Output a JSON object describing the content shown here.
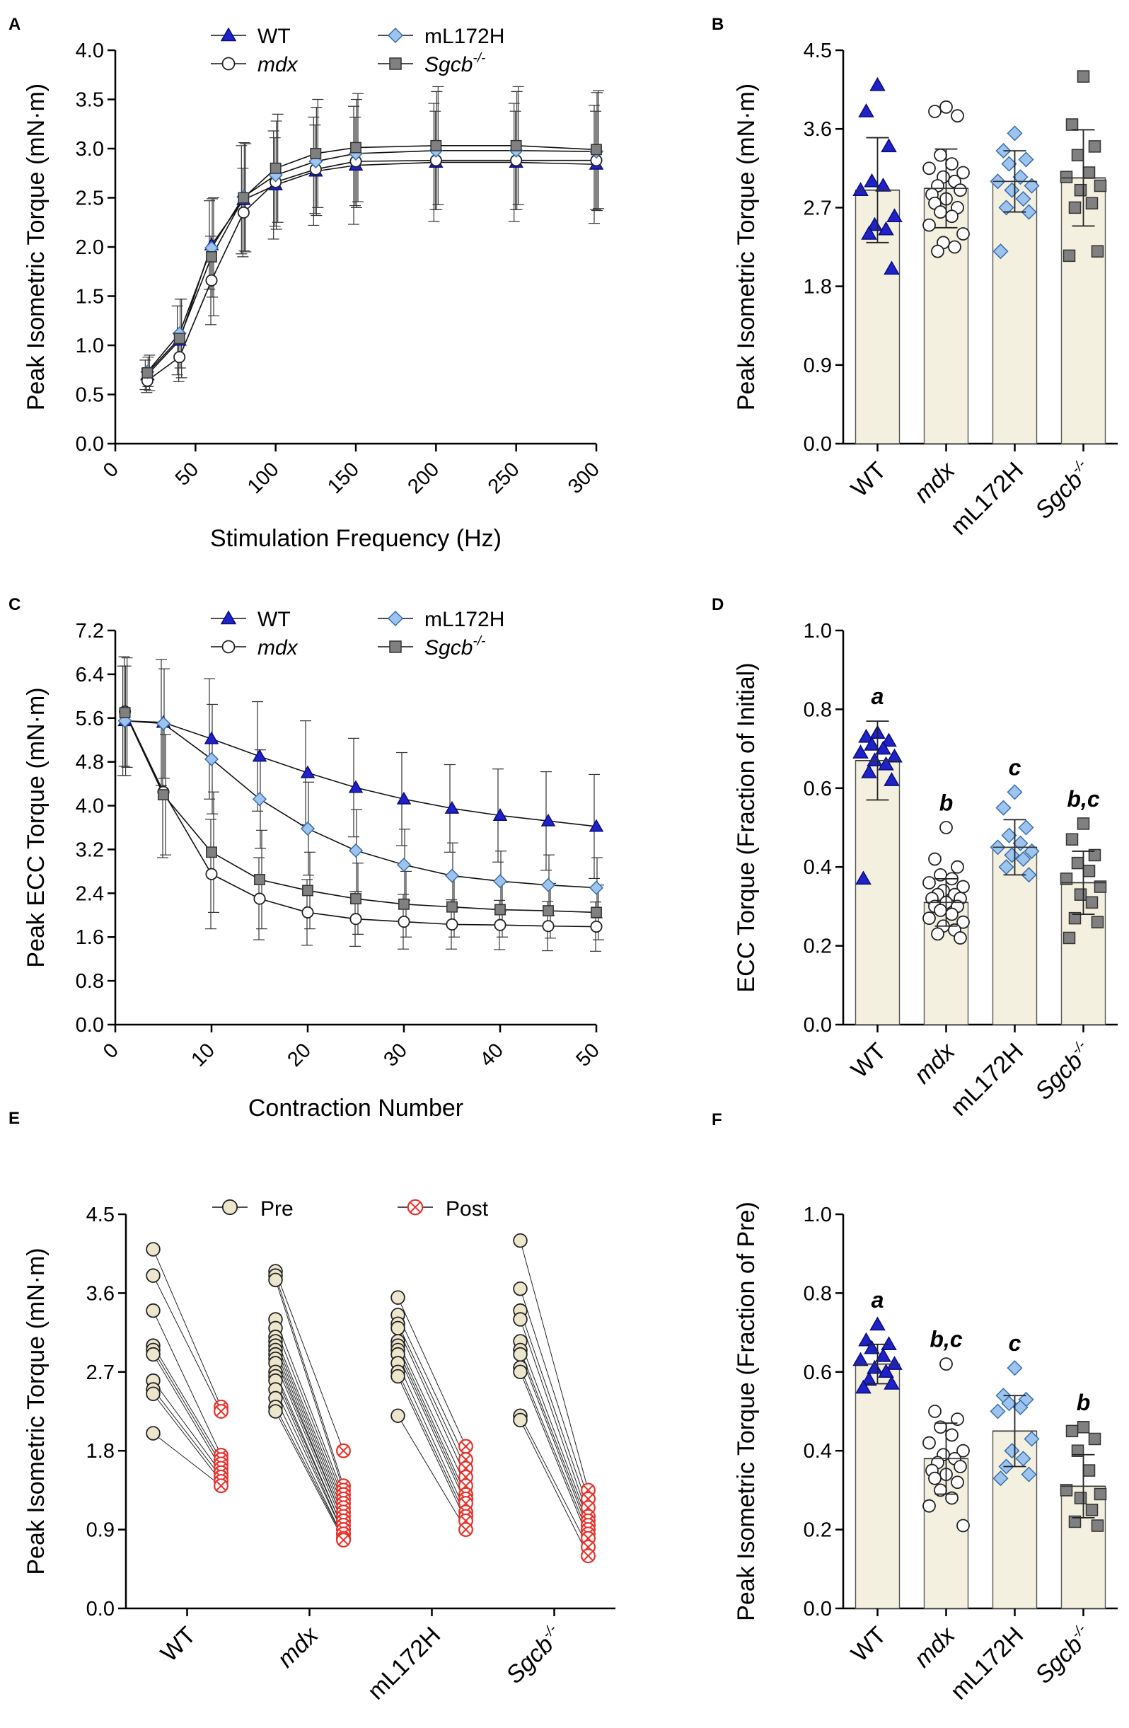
{
  "chart_data": [
    {
      "panel": "A",
      "type": "line",
      "xlabel": "Stimulation Frequency (Hz)",
      "ylabel": "Peak Isometric Torque (mN·m)",
      "xlim": [
        0,
        300
      ],
      "ylim": [
        0,
        4.0
      ],
      "xticks": [
        "0",
        "50",
        "100",
        "150",
        "200",
        "250",
        "300"
      ],
      "yticks": [
        "0.0",
        "0.5",
        "1.0",
        "1.5",
        "2.0",
        "2.5",
        "3.0",
        "3.5",
        "4.0"
      ],
      "x": [
        20,
        40,
        60,
        80,
        100,
        125,
        150,
        200,
        250,
        300
      ],
      "series": [
        {
          "name": "WT",
          "marker": "triangle",
          "color": "#1f22c8",
          "values": [
            0.7,
            1.05,
            2.02,
            2.48,
            2.63,
            2.77,
            2.83,
            2.86,
            2.86,
            2.84
          ],
          "sd": [
            0.15,
            0.35,
            0.45,
            0.55,
            0.55,
            0.55,
            0.6,
            0.6,
            0.6,
            0.6
          ]
        },
        {
          "name": "mdx",
          "italic": true,
          "marker": "circle",
          "color": "#ffffff",
          "values": [
            0.64,
            0.88,
            1.66,
            2.35,
            2.66,
            2.79,
            2.87,
            2.88,
            2.88,
            2.88
          ],
          "sd": [
            0.12,
            0.25,
            0.45,
            0.45,
            0.45,
            0.45,
            0.45,
            0.5,
            0.5,
            0.5
          ]
        },
        {
          "name": "mL172H",
          "marker": "diamond",
          "color": "#9cc4ef",
          "values": [
            0.73,
            1.12,
            1.99,
            2.51,
            2.73,
            2.87,
            2.95,
            2.98,
            2.98,
            2.97
          ],
          "sd": [
            0.15,
            0.35,
            0.5,
            0.55,
            0.55,
            0.55,
            0.55,
            0.6,
            0.6,
            0.6
          ]
        },
        {
          "name": "Sgcb",
          "sup": "-/-",
          "italic": true,
          "marker": "square",
          "color": "#808080",
          "values": [
            0.72,
            1.07,
            1.9,
            2.5,
            2.8,
            2.95,
            3.01,
            3.03,
            3.03,
            2.99
          ],
          "sd": [
            0.18,
            0.4,
            0.6,
            0.55,
            0.55,
            0.55,
            0.55,
            0.6,
            0.6,
            0.6
          ]
        }
      ]
    },
    {
      "panel": "B",
      "type": "bar",
      "ylabel": "Peak Isometric Torque (mN·m)",
      "ylim": [
        0,
        4.5
      ],
      "yticks": [
        "0.0",
        "0.9",
        "1.8",
        "2.7",
        "3.6",
        "4.5"
      ],
      "categories": [
        {
          "name": "WT"
        },
        {
          "name": "mdx",
          "italic": true
        },
        {
          "name": "mL172H"
        },
        {
          "name": "Sgcb",
          "sup": "-/-",
          "italic": true
        }
      ],
      "values": [
        2.9,
        2.92,
        3.0,
        3.04
      ],
      "sd": [
        0.6,
        0.45,
        0.35,
        0.55
      ],
      "points": [
        [
          4.1,
          3.8,
          3.4,
          3.0,
          2.95,
          2.9,
          2.6,
          2.5,
          2.45,
          2.4,
          2.0
        ],
        [
          3.85,
          3.8,
          3.75,
          3.3,
          3.2,
          3.15,
          3.1,
          3.05,
          3.0,
          2.95,
          2.9,
          2.85,
          2.8,
          2.75,
          2.7,
          2.65,
          2.6,
          2.5,
          2.4,
          2.3,
          2.25,
          2.2
        ],
        [
          3.55,
          3.35,
          3.25,
          3.2,
          3.05,
          3.0,
          2.95,
          2.9,
          2.8,
          2.7,
          2.65,
          2.2
        ],
        [
          4.2,
          3.65,
          3.4,
          3.3,
          3.1,
          3.05,
          2.95,
          2.9,
          2.75,
          2.7,
          2.2,
          2.15
        ]
      ],
      "colors": [
        "#1f22c8",
        "#ffffff",
        "#9cc4ef",
        "#808080"
      ],
      "markers": [
        "triangle",
        "circle",
        "diamond",
        "square"
      ]
    },
    {
      "panel": "C",
      "type": "line",
      "xlabel": "Contraction Number",
      "ylabel": "Peak ECC Torque (mN·m)",
      "xlim": [
        0,
        50
      ],
      "ylim": [
        0,
        7.2
      ],
      "xticks": [
        "0",
        "10",
        "20",
        "30",
        "40",
        "50"
      ],
      "yticks": [
        "0.0",
        "0.8",
        "1.6",
        "2.4",
        "3.2",
        "4.0",
        "4.8",
        "5.6",
        "6.4",
        "7.2"
      ],
      "x": [
        1,
        5,
        10,
        15,
        20,
        25,
        30,
        35,
        40,
        45,
        50
      ],
      "series": [
        {
          "name": "WT",
          "marker": "triangle",
          "color": "#1f22c8",
          "values": [
            5.55,
            5.52,
            5.22,
            4.9,
            4.6,
            4.33,
            4.12,
            3.95,
            3.82,
            3.72,
            3.62
          ],
          "sd": [
            1.0,
            1.15,
            1.1,
            1.0,
            0.95,
            0.9,
            0.85,
            0.8,
            0.85,
            0.9,
            0.95
          ]
        },
        {
          "name": "mdx",
          "italic": true,
          "marker": "circle",
          "color": "#ffffff",
          "values": [
            5.72,
            4.25,
            2.75,
            2.3,
            2.05,
            1.93,
            1.88,
            1.83,
            1.82,
            1.8,
            1.79
          ],
          "sd": [
            1.0,
            1.2,
            1.0,
            0.75,
            0.6,
            0.5,
            0.5,
            0.45,
            0.45,
            0.45,
            0.45
          ]
        },
        {
          "name": "mL172H",
          "marker": "diamond",
          "color": "#9cc4ef",
          "values": [
            5.55,
            5.5,
            4.85,
            4.12,
            3.58,
            3.18,
            2.92,
            2.72,
            2.62,
            2.55,
            2.5
          ],
          "sd": [
            1.0,
            1.0,
            1.0,
            0.9,
            0.85,
            0.75,
            0.65,
            0.6,
            0.55,
            0.55,
            0.55
          ]
        },
        {
          "name": "Sgcb",
          "sup": "-/-",
          "italic": true,
          "marker": "square",
          "color": "#808080",
          "values": [
            5.7,
            4.2,
            3.15,
            2.65,
            2.45,
            2.3,
            2.2,
            2.15,
            2.1,
            2.08,
            2.05
          ],
          "sd": [
            1.0,
            1.1,
            1.1,
            0.9,
            0.7,
            0.65,
            0.6,
            0.55,
            0.5,
            0.5,
            0.5
          ]
        }
      ],
      "legend": "top-center"
    },
    {
      "panel": "D",
      "type": "bar",
      "ylabel": "ECC Torque (Fraction of Initial)",
      "ylim": [
        0,
        1.0
      ],
      "yticks": [
        "0.0",
        "0.2",
        "0.4",
        "0.6",
        "0.8",
        "1.0"
      ],
      "categories": [
        {
          "name": "WT"
        },
        {
          "name": "mdx",
          "italic": true
        },
        {
          "name": "mL172H"
        },
        {
          "name": "Sgcb",
          "sup": "-/-",
          "italic": true
        }
      ],
      "values": [
        0.67,
        0.31,
        0.45,
        0.36
      ],
      "sd": [
        0.1,
        0.06,
        0.07,
        0.08
      ],
      "letters": [
        "a",
        "b",
        "c",
        "b,c"
      ],
      "points": [
        [
          0.74,
          0.73,
          0.72,
          0.71,
          0.7,
          0.69,
          0.68,
          0.67,
          0.66,
          0.64,
          0.62,
          0.37
        ],
        [
          0.5,
          0.42,
          0.4,
          0.38,
          0.37,
          0.36,
          0.35,
          0.34,
          0.33,
          0.33,
          0.32,
          0.32,
          0.31,
          0.3,
          0.3,
          0.29,
          0.28,
          0.27,
          0.26,
          0.25,
          0.24,
          0.23,
          0.22
        ],
        [
          0.59,
          0.55,
          0.5,
          0.48,
          0.46,
          0.45,
          0.44,
          0.43,
          0.42,
          0.4,
          0.38
        ],
        [
          0.51,
          0.47,
          0.43,
          0.41,
          0.39,
          0.37,
          0.35,
          0.33,
          0.31,
          0.27,
          0.26,
          0.22
        ]
      ],
      "colors": [
        "#1f22c8",
        "#ffffff",
        "#9cc4ef",
        "#808080"
      ],
      "markers": [
        "triangle",
        "circle",
        "diamond",
        "square"
      ]
    },
    {
      "panel": "E",
      "type": "scatter",
      "ylabel": "Peak Isometric Torque (mN·m)",
      "ylim": [
        0,
        4.5
      ],
      "yticks": [
        "0.0",
        "0.9",
        "1.8",
        "2.7",
        "3.6",
        "4.5"
      ],
      "categories": [
        {
          "name": "WT"
        },
        {
          "name": "mdx",
          "italic": true
        },
        {
          "name": "mL172H"
        },
        {
          "name": "Sgcb",
          "sup": "-/-",
          "italic": true
        }
      ],
      "legend_pre": "Pre",
      "legend_post": "Post",
      "pre": [
        [
          4.1,
          3.8,
          3.4,
          3.0,
          2.95,
          2.9,
          2.6,
          2.5,
          2.45,
          2.0
        ],
        [
          3.85,
          3.8,
          3.75,
          3.3,
          3.2,
          3.1,
          3.05,
          3.0,
          2.95,
          2.9,
          2.85,
          2.8,
          2.7,
          2.65,
          2.6,
          2.5,
          2.4,
          2.3,
          2.25
        ],
        [
          3.55,
          3.35,
          3.25,
          3.2,
          3.05,
          3.0,
          2.95,
          2.9,
          2.8,
          2.7,
          2.65,
          2.2
        ],
        [
          4.2,
          3.65,
          3.4,
          3.3,
          3.05,
          2.95,
          2.9,
          2.75,
          2.7,
          2.2,
          2.15
        ]
      ],
      "post": [
        [
          2.3,
          2.25,
          1.75,
          1.7,
          1.65,
          1.6,
          1.55,
          1.5,
          1.45,
          1.4
        ],
        [
          1.8,
          1.4,
          1.35,
          1.3,
          1.25,
          1.2,
          1.15,
          1.1,
          1.05,
          1.0,
          1.0,
          0.95,
          0.9,
          0.9,
          0.85,
          0.85,
          0.8,
          0.8,
          0.78
        ],
        [
          1.85,
          1.7,
          1.6,
          1.5,
          1.4,
          1.3,
          1.25,
          1.2,
          1.1,
          1.05,
          1.0,
          0.9
        ],
        [
          1.35,
          1.25,
          1.15,
          1.05,
          1.0,
          0.95,
          0.9,
          0.85,
          0.8,
          0.7,
          0.6
        ]
      ],
      "colors": {
        "pre": "#ece6cc",
        "post": "#e8302a"
      }
    },
    {
      "panel": "F",
      "type": "bar",
      "ylabel": "Peak Isometric Torque (Fraction of Pre)",
      "ylim": [
        0,
        1.0
      ],
      "yticks": [
        "0.0",
        "0.2",
        "0.4",
        "0.6",
        "0.8",
        "1.0"
      ],
      "categories": [
        {
          "name": "WT"
        },
        {
          "name": "mdx",
          "italic": true
        },
        {
          "name": "mL172H"
        },
        {
          "name": "Sgcb",
          "sup": "-/-",
          "italic": true
        }
      ],
      "values": [
        0.62,
        0.38,
        0.45,
        0.31
      ],
      "sd": [
        0.05,
        0.09,
        0.09,
        0.08
      ],
      "letters": [
        "a",
        "b,c",
        "c",
        "b"
      ],
      "points": [
        [
          0.72,
          0.68,
          0.67,
          0.66,
          0.64,
          0.63,
          0.62,
          0.61,
          0.6,
          0.58,
          0.57,
          0.56
        ],
        [
          0.62,
          0.5,
          0.48,
          0.46,
          0.44,
          0.42,
          0.4,
          0.39,
          0.38,
          0.37,
          0.36,
          0.35,
          0.34,
          0.33,
          0.32,
          0.3,
          0.28,
          0.26,
          0.21
        ],
        [
          0.61,
          0.54,
          0.53,
          0.52,
          0.51,
          0.5,
          0.43,
          0.4,
          0.38,
          0.36,
          0.34,
          0.33
        ],
        [
          0.46,
          0.45,
          0.43,
          0.4,
          0.35,
          0.3,
          0.29,
          0.28,
          0.25,
          0.22,
          0.21
        ]
      ],
      "colors": [
        "#1f22c8",
        "#ffffff",
        "#9cc4ef",
        "#808080"
      ],
      "markers": [
        "triangle",
        "circle",
        "diamond",
        "square"
      ]
    }
  ]
}
